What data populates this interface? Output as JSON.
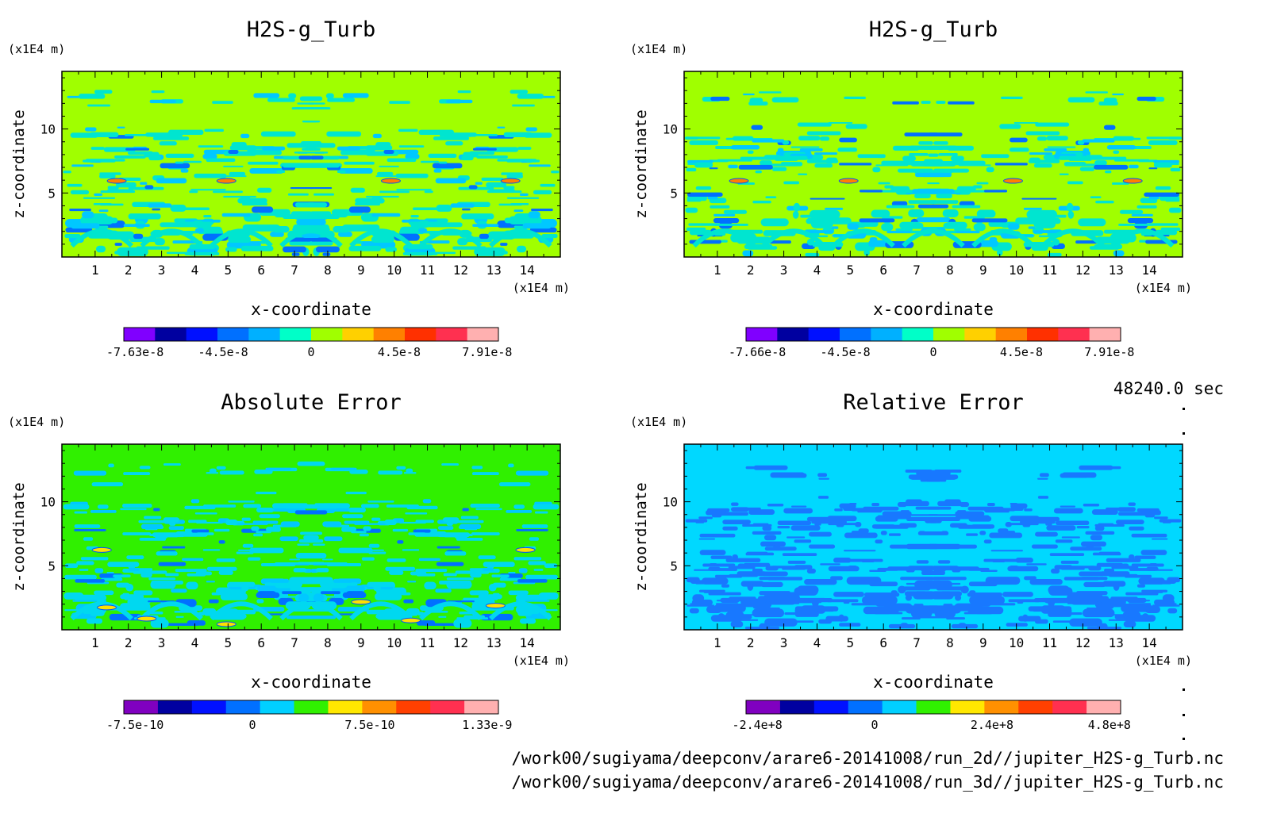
{
  "time_label": "48240.0 sec",
  "footer": {
    "line1": "/work00/sugiyama/deepconv/arare6-20141008/run_2d//jupiter_H2S-g_Turb.nc",
    "line2": "/work00/sugiyama/deepconv/arare6-20141008/run_3d//jupiter_H2S-g_Turb.nc"
  },
  "chart_data": [
    {
      "type": "heatmap",
      "title": "H2S-g_Turb",
      "xlabel": "x-coordinate",
      "ylabel": "z-coordinate",
      "x_unit": "(x1E4 m)",
      "y_unit": "(x1E4 m)",
      "xlim": [
        0,
        15
      ],
      "ylim": [
        0,
        14.5
      ],
      "x_ticks": [
        1,
        2,
        3,
        4,
        5,
        6,
        7,
        8,
        9,
        10,
        11,
        12,
        13,
        14
      ],
      "y_ticks": [
        5,
        10
      ],
      "background_color": "#a0ff00",
      "pattern_colors": [
        "#00e5d0",
        "#00c8ff",
        "#0070ff",
        "#ff8000"
      ],
      "colorbar": {
        "colors": [
          "#8000ff",
          "#0000a0",
          "#0010ff",
          "#0070ff",
          "#00b0ff",
          "#00ffc8",
          "#a0ff00",
          "#ffd000",
          "#ff8000",
          "#ff3000",
          "#ff3050",
          "#ffb0b0"
        ],
        "labels": [
          "-7.63e-8",
          "-4.5e-8",
          "0",
          "4.5e-8",
          "7.91e-8"
        ]
      }
    },
    {
      "type": "heatmap",
      "title": "H2S-g_Turb",
      "xlabel": "x-coordinate",
      "ylabel": "z-coordinate",
      "x_unit": "(x1E4 m)",
      "y_unit": "(x1E4 m)",
      "xlim": [
        0,
        15
      ],
      "ylim": [
        0,
        14.5
      ],
      "x_ticks": [
        1,
        2,
        3,
        4,
        5,
        6,
        7,
        8,
        9,
        10,
        11,
        12,
        13,
        14
      ],
      "y_ticks": [
        5,
        10
      ],
      "background_color": "#a0ff00",
      "pattern_colors": [
        "#00e5d0",
        "#00c8ff",
        "#0070ff",
        "#ff8000"
      ],
      "colorbar": {
        "colors": [
          "#8000ff",
          "#0000a0",
          "#0010ff",
          "#0070ff",
          "#00b0ff",
          "#00ffc8",
          "#a0ff00",
          "#ffd000",
          "#ff8000",
          "#ff3000",
          "#ff3050",
          "#ffb0b0"
        ],
        "labels": [
          "-7.66e-8",
          "-4.5e-8",
          "0",
          "4.5e-8",
          "7.91e-8"
        ]
      }
    },
    {
      "type": "heatmap",
      "title": "Absolute Error",
      "xlabel": "x-coordinate",
      "ylabel": "z-coordinate",
      "x_unit": "(x1E4 m)",
      "y_unit": "(x1E4 m)",
      "xlim": [
        0,
        15
      ],
      "ylim": [
        0,
        14.5
      ],
      "x_ticks": [
        1,
        2,
        3,
        4,
        5,
        6,
        7,
        8,
        9,
        10,
        11,
        12,
        13,
        14
      ],
      "y_ticks": [
        5,
        10
      ],
      "background_color": "#30f000",
      "pattern_colors": [
        "#00d8f0",
        "#00c8ff",
        "#0070ff",
        "#ffe000"
      ],
      "colorbar": {
        "colors": [
          "#8000c0",
          "#0000a0",
          "#0010ff",
          "#0070ff",
          "#00d0ff",
          "#30f000",
          "#ffe800",
          "#ff9000",
          "#ff4000",
          "#ff3050",
          "#ffb0b0"
        ],
        "labels": [
          "-7.5e-10",
          "0",
          "7.5e-10",
          "1.33e-9"
        ]
      }
    },
    {
      "type": "heatmap",
      "title": "Relative Error",
      "xlabel": "x-coordinate",
      "ylabel": "z-coordinate",
      "x_unit": "(x1E4 m)",
      "y_unit": "(x1E4 m)",
      "xlim": [
        0,
        15
      ],
      "ylim": [
        0,
        14.5
      ],
      "x_ticks": [
        1,
        2,
        3,
        4,
        5,
        6,
        7,
        8,
        9,
        10,
        11,
        12,
        13,
        14
      ],
      "y_ticks": [
        5,
        10
      ],
      "background_color": "#00d8ff",
      "pattern_colors": [
        "#1878ff",
        "#1878ff",
        "#1878ff",
        "#1878ff"
      ],
      "colorbar": {
        "colors": [
          "#8000c0",
          "#0000a0",
          "#0010ff",
          "#0070ff",
          "#00d0ff",
          "#30f000",
          "#ffe800",
          "#ff9000",
          "#ff4000",
          "#ff3050",
          "#ffb0b0"
        ],
        "labels": [
          "-2.4e+8",
          "0",
          "2.4e+8",
          "4.8e+8"
        ]
      }
    }
  ]
}
